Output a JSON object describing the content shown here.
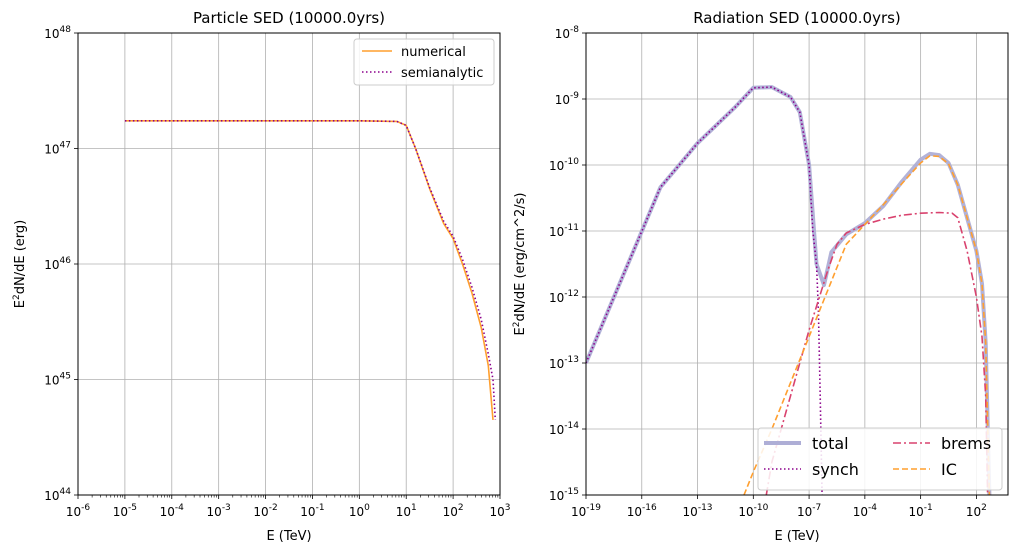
{
  "chart_data": [
    {
      "type": "line",
      "title": "Particle SED (10000.0yrs)",
      "xlabel": "E (TeV)",
      "ylabel_base": "E",
      "ylabel_sup": "2",
      "ylabel_rest": "dN/dE (erg)",
      "xscale": "log",
      "yscale": "log",
      "xlim_exp": [
        -6,
        3
      ],
      "ylim_exp": [
        44,
        48
      ],
      "x_tick_exponents": [
        "-6",
        "-5",
        "-4",
        "-3",
        "-2",
        "-1",
        "0",
        "1",
        "2",
        "3"
      ],
      "y_tick_exponents": [
        "44",
        "45",
        "46",
        "47",
        "48"
      ],
      "tick_base": "10",
      "grid": true,
      "legend": "top-right",
      "series": [
        {
          "name": "numerical",
          "color": "#ff9f2f",
          "style": "solid",
          "log_points": [
            [
              -5,
              47.24
            ],
            [
              0,
              47.24
            ],
            [
              0.8,
              47.235
            ],
            [
              1.0,
              47.2
            ],
            [
              1.2,
              47.0
            ],
            [
              1.5,
              46.65
            ],
            [
              1.8,
              46.35
            ],
            [
              2.0,
              46.22
            ],
            [
              2.2,
              46.0
            ],
            [
              2.4,
              45.75
            ],
            [
              2.6,
              45.45
            ],
            [
              2.75,
              45.12
            ],
            [
              2.85,
              44.65
            ]
          ]
        },
        {
          "name": "semianalytic",
          "color": "#8b008b",
          "style": "dotted",
          "log_points": [
            [
              -5,
              47.24
            ],
            [
              0,
              47.24
            ],
            [
              0.8,
              47.235
            ],
            [
              1.0,
              47.2
            ],
            [
              1.2,
              47.0
            ],
            [
              1.5,
              46.66
            ],
            [
              1.8,
              46.37
            ],
            [
              2.0,
              46.24
            ],
            [
              2.2,
              46.04
            ],
            [
              2.4,
              45.8
            ],
            [
              2.6,
              45.52
            ],
            [
              2.75,
              45.22
            ],
            [
              2.85,
              45.0
            ],
            [
              2.9,
              44.65
            ]
          ]
        }
      ]
    },
    {
      "type": "line",
      "title": "Radiation SED (10000.0yrs)",
      "xlabel": "E (TeV)",
      "ylabel_base": "E",
      "ylabel_sup": "2",
      "ylabel_rest": "dN/dE (erg/cm^2/s)",
      "xscale": "log",
      "yscale": "log",
      "xlim_exp": [
        -19,
        3.7
      ],
      "ylim_exp": [
        -15,
        -8
      ],
      "x_tick_exponents": [
        "-19",
        "-16",
        "-13",
        "-10",
        "-7",
        "-4",
        "-1",
        "2"
      ],
      "y_tick_exponents": [
        "-15",
        "-14",
        "-13",
        "-12",
        "-11",
        "-10",
        "-9",
        "-8"
      ],
      "tick_base": "10",
      "grid": true,
      "legend": "lower-right",
      "legend_columns": 2,
      "series": [
        {
          "name": "total",
          "color": "#aeaed6",
          "style": "thick",
          "log_points": [
            [
              -19,
              -13
            ],
            [
              -17,
              -11.67
            ],
            [
              -15,
              -10.34
            ],
            [
              -13,
              -9.67
            ],
            [
              -11,
              -9.13
            ],
            [
              -10,
              -8.83
            ],
            [
              -9,
              -8.82
            ],
            [
              -8,
              -8.97
            ],
            [
              -7.5,
              -9.2
            ],
            [
              -7,
              -10.0
            ],
            [
              -6.6,
              -11.5
            ],
            [
              -6.2,
              -11.82
            ],
            [
              -5.8,
              -11.32
            ],
            [
              -5,
              -11.05
            ],
            [
              -4,
              -10.88
            ],
            [
              -3,
              -10.62
            ],
            [
              -2,
              -10.25
            ],
            [
              -1,
              -9.92
            ],
            [
              -0.5,
              -9.83
            ],
            [
              0,
              -9.85
            ],
            [
              0.5,
              -9.97
            ],
            [
              1,
              -10.3
            ],
            [
              1.5,
              -10.8
            ],
            [
              2,
              -11.3
            ],
            [
              2.3,
              -11.8
            ],
            [
              2.5,
              -12.7
            ],
            [
              2.7,
              -15
            ]
          ]
        },
        {
          "name": "synch",
          "color": "#8b008b",
          "style": "dotted",
          "log_points": [
            [
              -19,
              -13
            ],
            [
              -17,
              -11.67
            ],
            [
              -15,
              -10.34
            ],
            [
              -13,
              -9.67
            ],
            [
              -11,
              -9.13
            ],
            [
              -10,
              -8.83
            ],
            [
              -9,
              -8.82
            ],
            [
              -8,
              -8.97
            ],
            [
              -7.5,
              -9.2
            ],
            [
              -7,
              -10.0
            ],
            [
              -6.8,
              -11
            ],
            [
              -6.6,
              -11.5
            ],
            [
              -6.5,
              -12.2
            ],
            [
              -6.4,
              -13.5
            ],
            [
              -6.3,
              -15
            ]
          ]
        },
        {
          "name": "brems",
          "color": "#d9426e",
          "style": "dashdot",
          "log_points": [
            [
              -9.3,
              -15
            ],
            [
              -9,
              -14.5
            ],
            [
              -8,
              -13.5
            ],
            [
              -7,
              -12.5
            ],
            [
              -6,
              -11.6
            ],
            [
              -5.5,
              -11.2
            ],
            [
              -5,
              -11.03
            ],
            [
              -4,
              -10.9
            ],
            [
              -3,
              -10.82
            ],
            [
              -2,
              -10.76
            ],
            [
              -1,
              -10.73
            ],
            [
              0,
              -10.72
            ],
            [
              0.7,
              -10.73
            ],
            [
              1,
              -10.8
            ],
            [
              1.5,
              -11.3
            ],
            [
              2,
              -12.0
            ],
            [
              2.3,
              -12.6
            ],
            [
              2.5,
              -13.5
            ],
            [
              2.6,
              -15
            ]
          ]
        },
        {
          "name": "IC",
          "color": "#ff9f2f",
          "style": "dashed",
          "log_points": [
            [
              -10.5,
              -15
            ],
            [
              -10,
              -14.65
            ],
            [
              -9,
              -14
            ],
            [
              -8,
              -13.3
            ],
            [
              -7,
              -12.6
            ],
            [
              -6,
              -11.9
            ],
            [
              -5,
              -11.2
            ],
            [
              -4,
              -10.9
            ],
            [
              -3,
              -10.6
            ],
            [
              -2,
              -10.28
            ],
            [
              -1,
              -9.97
            ],
            [
              -0.5,
              -9.86
            ],
            [
              0,
              -9.87
            ],
            [
              0.5,
              -9.98
            ],
            [
              1,
              -10.3
            ],
            [
              1.5,
              -10.8
            ],
            [
              2,
              -11.3
            ],
            [
              2.3,
              -11.8
            ],
            [
              2.5,
              -12.7
            ],
            [
              2.7,
              -15
            ]
          ]
        }
      ]
    }
  ]
}
